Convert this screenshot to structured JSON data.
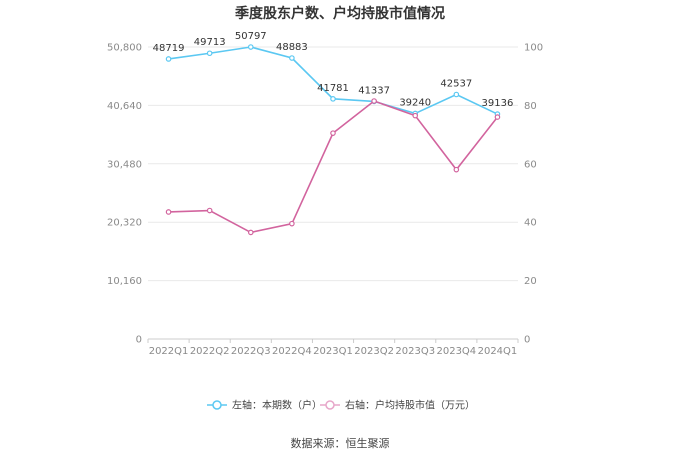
{
  "chart_data": {
    "type": "line",
    "title": "季度股东户数、户均持股市值情况",
    "categories": [
      "2022Q1",
      "2022Q2",
      "2022Q3",
      "2022Q4",
      "2023Q1",
      "2023Q2",
      "2023Q3",
      "2023Q4",
      "2024Q1"
    ],
    "left_axis": {
      "min": 0,
      "max": 50800,
      "ticks": [
        "0",
        "10,160",
        "20,320",
        "30,480",
        "40,640",
        "50,800"
      ],
      "tick_values": [
        0,
        10160,
        20320,
        30480,
        40640,
        50800
      ]
    },
    "right_axis": {
      "min": 0,
      "max": 100,
      "ticks": [
        "0",
        "20",
        "40",
        "60",
        "80",
        "100"
      ],
      "tick_values": [
        0,
        20,
        40,
        60,
        80,
        100
      ]
    },
    "series": [
      {
        "name": "左轴：本期数（户）",
        "axis": "left",
        "color": "#5bc8f2",
        "values": [
          48719,
          49713,
          50797,
          48883,
          41781,
          41337,
          39240,
          42537,
          39136
        ],
        "labels": [
          "48719",
          "49713",
          "50797",
          "48883",
          "41781",
          "41337",
          "39240",
          "42537",
          "39136"
        ]
      },
      {
        "name": "右轴：户均持股市值（万元）",
        "axis": "right",
        "color": "#d2649e",
        "values": [
          43.5,
          44.0,
          36.5,
          39.5,
          70.5,
          81.5,
          76.5,
          58.0,
          76.0
        ]
      }
    ],
    "legend_position": "bottom",
    "grid": true
  },
  "footer": {
    "source": "数据来源：恒生聚源"
  }
}
